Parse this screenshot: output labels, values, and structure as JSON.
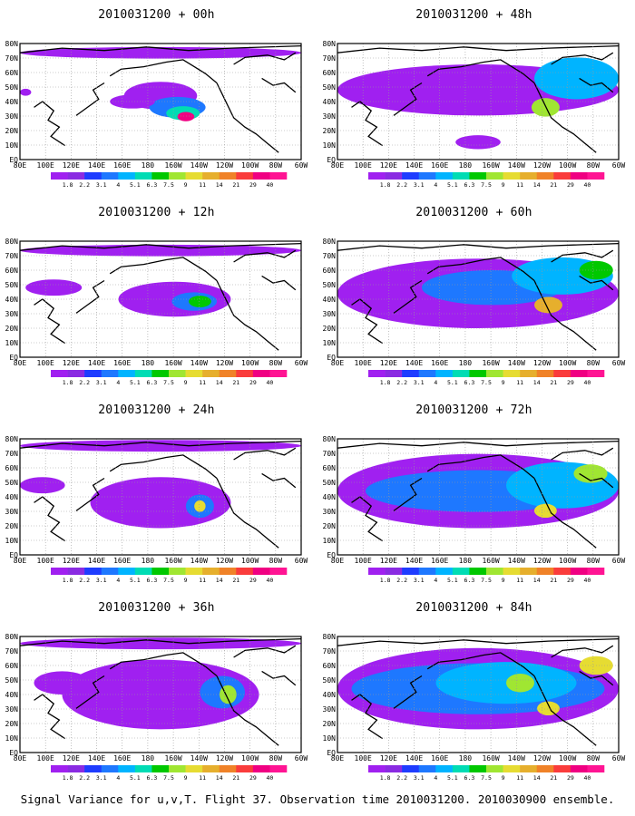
{
  "panels": [
    {
      "title": "2010031200 + 00h"
    },
    {
      "title": "2010031200 + 48h"
    },
    {
      "title": "2010031200 + 12h"
    },
    {
      "title": "2010031200 + 60h"
    },
    {
      "title": "2010031200 + 24h"
    },
    {
      "title": "2010031200 + 72h"
    },
    {
      "title": "2010031200 + 36h"
    },
    {
      "title": "2010031200 + 84h"
    }
  ],
  "lat_labels": [
    "80N",
    "70N",
    "60N",
    "50N",
    "40N",
    "30N",
    "20N",
    "10N",
    "EQ"
  ],
  "lon_labels": [
    "80E",
    "100E",
    "120E",
    "140E",
    "160E",
    "180",
    "160W",
    "140W",
    "120W",
    "100W",
    "80W",
    "60W"
  ],
  "colorbar": {
    "labels": [
      "1.8",
      "2.2",
      "3.1",
      "4",
      "5.1",
      "6.3",
      "7.5",
      "9",
      "11",
      "14",
      "21",
      "29",
      "40"
    ],
    "colors": [
      "#a020f0",
      "#8a2be2",
      "#1e3cff",
      "#1e78ff",
      "#00b4ff",
      "#00dcb4",
      "#00c800",
      "#a0e632",
      "#e6dc32",
      "#e6af2d",
      "#f08228",
      "#fa3c3c",
      "#f00082",
      "#ff1493"
    ]
  },
  "footer": "Signal Variance for u,v,T. Flight 37. Observation time 2010031200. 2010030900 ensemble."
}
